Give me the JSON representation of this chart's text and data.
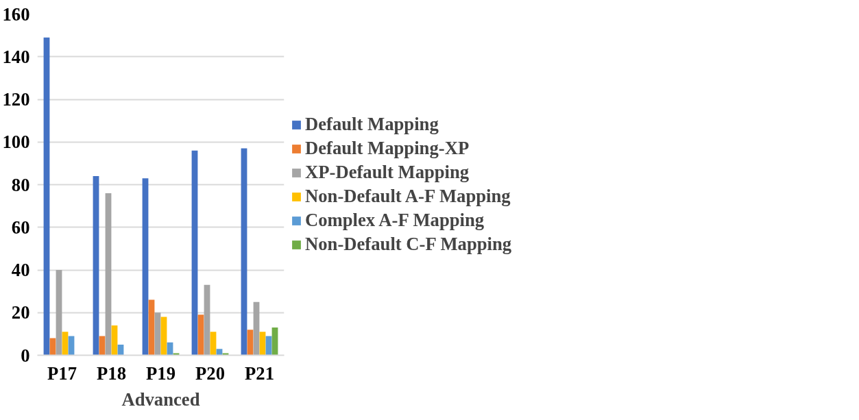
{
  "chart_data": {
    "type": "bar",
    "xlabel": "Advanced",
    "categories": [
      "P17",
      "P18",
      "P19",
      "P20",
      "P21"
    ],
    "series": [
      {
        "name": "Default Mapping",
        "color": "#4472c4",
        "values": [
          149,
          84,
          83,
          96,
          97
        ]
      },
      {
        "name": "Default Mapping-XP",
        "color": "#ed7d31",
        "values": [
          8,
          9,
          26,
          19,
          12
        ]
      },
      {
        "name": "XP-Default Mapping",
        "color": "#a5a5a5",
        "values": [
          40,
          76,
          20,
          33,
          25
        ]
      },
      {
        "name": "Non-Default A-F Mapping",
        "color": "#ffc000",
        "values": [
          11,
          14,
          18,
          11,
          11
        ]
      },
      {
        "name": "Complex A-F Mapping",
        "color": "#5b9bd5",
        "values": [
          9,
          5,
          6,
          3,
          9
        ]
      },
      {
        "name": "Non-Default C-F Mapping",
        "color": "#70ad47",
        "values": [
          0,
          0,
          1,
          1,
          13
        ]
      }
    ],
    "ylim": [
      0,
      160
    ],
    "yticks": [
      0,
      20,
      40,
      60,
      80,
      100,
      120,
      140,
      160
    ],
    "grid": "y",
    "legend": "right"
  }
}
